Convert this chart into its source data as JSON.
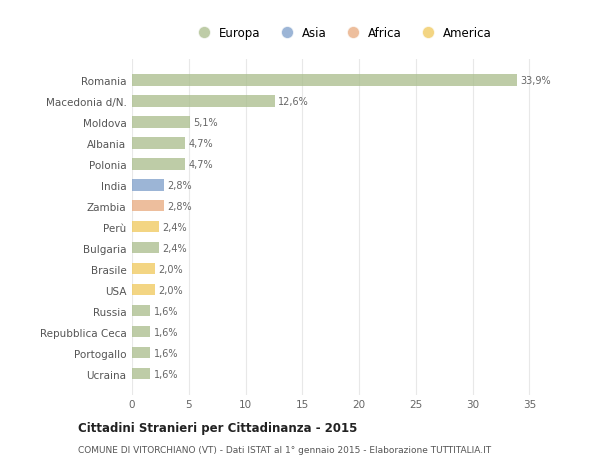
{
  "countries": [
    "Romania",
    "Macedonia d/N.",
    "Moldova",
    "Albania",
    "Polonia",
    "India",
    "Zambia",
    "Perù",
    "Bulgaria",
    "Brasile",
    "USA",
    "Russia",
    "Repubblica Ceca",
    "Portogallo",
    "Ucraina"
  ],
  "values": [
    33.9,
    12.6,
    5.1,
    4.7,
    4.7,
    2.8,
    2.8,
    2.4,
    2.4,
    2.0,
    2.0,
    1.6,
    1.6,
    1.6,
    1.6
  ],
  "labels": [
    "33,9%",
    "12,6%",
    "5,1%",
    "4,7%",
    "4,7%",
    "2,8%",
    "2,8%",
    "2,4%",
    "2,4%",
    "2,0%",
    "2,0%",
    "1,6%",
    "1,6%",
    "1,6%",
    "1,6%"
  ],
  "colors": [
    "#a8bc8a",
    "#a8bc8a",
    "#a8bc8a",
    "#a8bc8a",
    "#a8bc8a",
    "#7b9dc9",
    "#e8a87c",
    "#f0c85a",
    "#a8bc8a",
    "#f0c85a",
    "#f0c85a",
    "#a8bc8a",
    "#a8bc8a",
    "#a8bc8a",
    "#a8bc8a"
  ],
  "legend_labels": [
    "Europa",
    "Asia",
    "Africa",
    "America"
  ],
  "legend_colors": [
    "#a8bc8a",
    "#7b9dc9",
    "#e8a87c",
    "#f0c85a"
  ],
  "title": "Cittadini Stranieri per Cittadinanza - 2015",
  "subtitle": "COMUNE DI VITORCHIANO (VT) - Dati ISTAT al 1° gennaio 2015 - Elaborazione TUTTITALIA.IT",
  "xlim": [
    0,
    37
  ],
  "xticks": [
    0,
    5,
    10,
    15,
    20,
    25,
    30,
    35
  ],
  "bg_color": "#ffffff",
  "bar_alpha": 0.75,
  "grid_color": "#e8e8e8"
}
